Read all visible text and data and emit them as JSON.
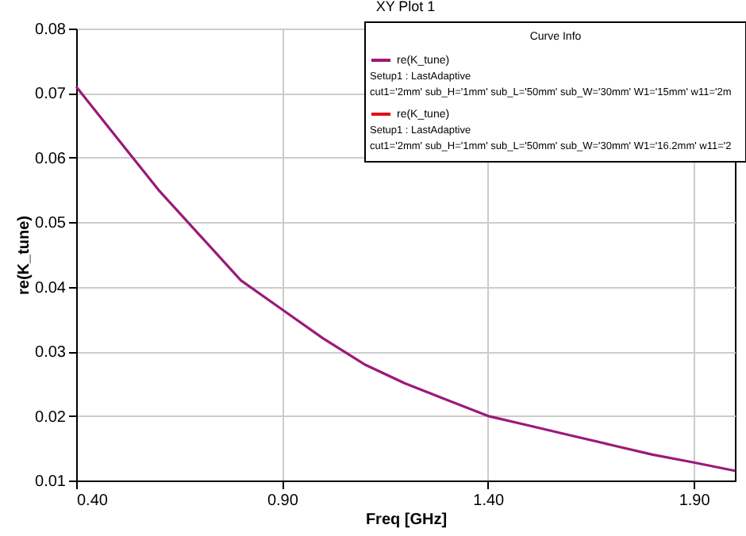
{
  "chart_data": {
    "type": "line",
    "title": "XY Plot 1",
    "xlabel": "Freq [GHz]",
    "ylabel": "re(K_tune)",
    "legend_title": "Curve Info",
    "x": [
      0.4,
      0.5,
      0.6,
      0.7,
      0.8,
      0.9,
      1.0,
      1.1,
      1.2,
      1.3,
      1.4,
      1.5,
      1.6,
      1.7,
      1.8,
      1.9,
      2.0
    ],
    "series": [
      {
        "name": "re(K_tune)",
        "color": "#9b1a7a",
        "values": [
          0.071,
          0.063,
          0.055,
          0.048,
          0.041,
          0.0365,
          0.032,
          0.028,
          0.025,
          0.0225,
          0.02,
          0.0185,
          0.017,
          0.0155,
          0.014,
          0.0128,
          0.0115
        ]
      },
      {
        "name": "re(K_tune)",
        "color": "#e01010",
        "values": [
          null,
          null,
          null,
          null,
          null,
          null,
          null,
          null,
          null,
          null,
          null,
          null,
          null,
          null,
          null,
          null,
          null
        ]
      }
    ],
    "annotations": [
      "Setup1 : LastAdaptive",
      "cut1='2mm' sub_H='1mm' sub_L='50mm' sub_W='30mm' W1='15mm' w11='2m",
      "Setup1 : LastAdaptive",
      "cut1='2mm' sub_H='1mm' sub_L='50mm' sub_W='30mm' W1='16.2mm' w11='2"
    ],
    "xlim": [
      0.4,
      2.0
    ],
    "xticks": [
      {
        "value": 0.4,
        "label": "0.40"
      },
      {
        "value": 0.9,
        "label": "0.90"
      },
      {
        "value": 1.4,
        "label": "1.40"
      },
      {
        "value": 1.9,
        "label": "1.90"
      }
    ],
    "ylim": [
      0.01,
      0.08
    ],
    "yticks": [
      0.01,
      0.02,
      0.03,
      0.04,
      0.05,
      0.06,
      0.07,
      0.08
    ],
    "grid": true,
    "legend": "top right",
    "marker": "none",
    "line_style": "solid"
  }
}
